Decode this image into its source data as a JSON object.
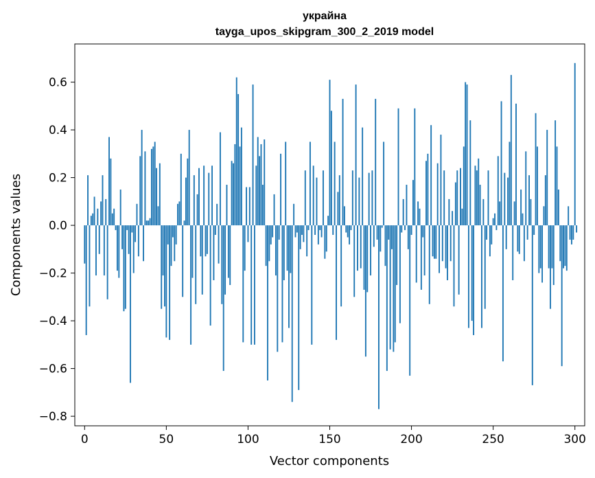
{
  "chart_data": {
    "type": "bar",
    "title_line1": "украйна",
    "title_line2": "tayga_upos_skipgram_300_2_2019 model",
    "xlabel": "Vector components",
    "ylabel": "Components values",
    "xlim": [
      -6,
      306
    ],
    "ylim": [
      -0.84,
      0.76
    ],
    "xticks": [
      0,
      50,
      100,
      150,
      200,
      250,
      300
    ],
    "yticks": [
      -0.8,
      -0.6,
      -0.4,
      -0.2,
      0.0,
      0.2,
      0.4,
      0.6
    ],
    "ytick_labels": [
      "−0.8",
      "−0.6",
      "−0.4",
      "−0.2",
      "0.0",
      "0.2",
      "0.4",
      "0.6"
    ],
    "bar_color": "#1f77b4",
    "values": [
      -0.16,
      -0.46,
      0.21,
      -0.34,
      0.04,
      0.05,
      0.12,
      -0.21,
      0.07,
      -0.12,
      0.1,
      0.21,
      -0.21,
      0.11,
      -0.31,
      0.37,
      0.28,
      0.05,
      0.07,
      -0.02,
      -0.19,
      -0.22,
      0.15,
      -0.1,
      -0.36,
      -0.35,
      -0.02,
      -0.12,
      -0.66,
      -0.03,
      -0.2,
      -0.07,
      0.09,
      -0.13,
      0.29,
      0.4,
      -0.15,
      0.31,
      0.02,
      0.02,
      0.03,
      0.32,
      0.33,
      0.35,
      0.24,
      0.08,
      0.26,
      -0.35,
      -0.21,
      -0.34,
      -0.47,
      -0.08,
      -0.48,
      -0.17,
      -0.05,
      -0.15,
      -0.08,
      0.09,
      0.1,
      0.3,
      -0.3,
      0.02,
      0.2,
      0.28,
      0.4,
      -0.5,
      -0.22,
      0.21,
      -0.33,
      0.13,
      0.24,
      -0.13,
      -0.29,
      0.25,
      -0.13,
      -0.12,
      0.22,
      -0.42,
      0.25,
      -0.23,
      -0.04,
      0.09,
      -0.16,
      0.39,
      -0.33,
      -0.61,
      -0.29,
      0.17,
      -0.22,
      -0.25,
      0.27,
      0.26,
      0.34,
      0.62,
      0.55,
      0.33,
      0.41,
      -0.49,
      -0.19,
      0.16,
      -0.07,
      0.16,
      -0.5,
      0.59,
      -0.5,
      0.25,
      0.37,
      0.29,
      0.34,
      0.17,
      0.36,
      -0.17,
      -0.65,
      -0.15,
      -0.08,
      -0.05,
      0.13,
      -0.21,
      -0.53,
      -0.06,
      0.3,
      -0.49,
      -0.23,
      0.35,
      -0.19,
      -0.43,
      -0.2,
      -0.74,
      0.09,
      -0.05,
      -0.03,
      -0.69,
      -0.1,
      -0.04,
      -0.07,
      0.23,
      -0.13,
      -0.02,
      0.35,
      -0.5,
      0.25,
      -0.04,
      0.2,
      -0.08,
      -0.02,
      -0.05,
      0.23,
      -0.14,
      -0.11,
      0.04,
      0.61,
      0.48,
      -0.04,
      0.35,
      -0.48,
      0.14,
      0.21,
      -0.34,
      0.53,
      0.08,
      -0.03,
      -0.05,
      -0.08,
      -0.02,
      0.23,
      -0.3,
      0.59,
      -0.19,
      0.2,
      -0.18,
      0.41,
      -0.27,
      -0.55,
      -0.28,
      0.22,
      -0.21,
      0.23,
      -0.09,
      0.53,
      -0.06,
      -0.77,
      -0.11,
      -0.01,
      0.35,
      -0.17,
      -0.61,
      -0.06,
      -0.52,
      -0.1,
      -0.53,
      -0.49,
      -0.25,
      0.49,
      -0.41,
      -0.03,
      0.11,
      -0.02,
      0.17,
      -0.1,
      -0.63,
      -0.04,
      0.19,
      0.49,
      -0.24,
      0.1,
      0.07,
      -0.27,
      -0.05,
      -0.21,
      0.27,
      0.3,
      -0.33,
      0.42,
      -0.13,
      -0.14,
      -0.14,
      0.26,
      -0.2,
      0.38,
      -0.15,
      0.23,
      -0.18,
      -0.23,
      0.11,
      -0.15,
      0.06,
      -0.34,
      0.18,
      0.23,
      -0.29,
      0.24,
      0.07,
      0.33,
      0.6,
      0.59,
      -0.43,
      0.44,
      -0.4,
      -0.46,
      0.25,
      0.23,
      0.28,
      0.17,
      -0.43,
      0.11,
      -0.35,
      -0.06,
      0.23,
      -0.13,
      -0.08,
      0.03,
      0.05,
      -0.02,
      0.29,
      0.1,
      0.52,
      -0.57,
      0.22,
      -0.1,
      0.2,
      0.35,
      0.63,
      -0.23,
      0.1,
      0.51,
      -0.11,
      -0.12,
      0.15,
      0.05,
      -0.15,
      0.31,
      -0.06,
      0.21,
      0.11,
      -0.67,
      -0.04,
      0.47,
      0.33,
      -0.2,
      -0.18,
      -0.24,
      0.08,
      0.21,
      0.4,
      -0.18,
      -0.35,
      -0.18,
      -0.25,
      0.44,
      0.33,
      0.15,
      -0.15,
      -0.59,
      -0.18,
      -0.17,
      -0.19,
      0.08,
      -0.06,
      -0.08,
      -0.06,
      0.68,
      -0.03
    ]
  }
}
